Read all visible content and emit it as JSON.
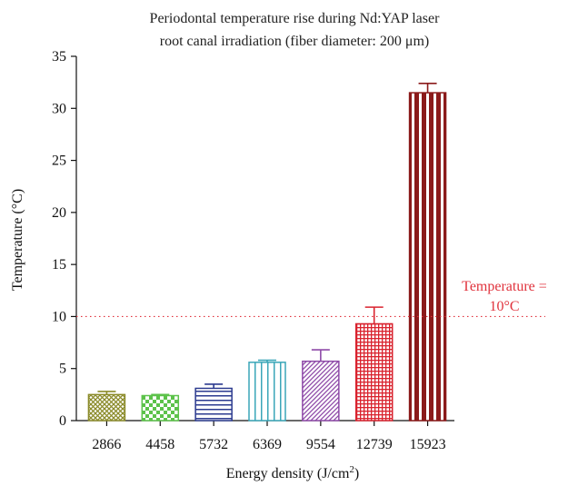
{
  "chart_data": {
    "type": "bar",
    "title_lines": [
      "Periodontal temperature rise during Nd:YAP laser",
      "root canal irradiation (fiber diameter: 200 μm)"
    ],
    "xlabel": "Energy density (J/cm",
    "xlabel_superscript": "2",
    "xlabel_suffix": ")",
    "ylabel": "Temperature (°C)",
    "ylim": [
      0,
      35
    ],
    "yticks": [
      "0",
      "5",
      "10",
      "15",
      "20",
      "25",
      "30",
      "35"
    ],
    "ytick_values": [
      0,
      5,
      10,
      15,
      20,
      25,
      30,
      35
    ],
    "categories": [
      "2866",
      "4458",
      "5732",
      "6369",
      "9554",
      "12739",
      "15923"
    ],
    "values": [
      2.5,
      2.4,
      3.1,
      5.6,
      5.7,
      9.3,
      31.5
    ],
    "error_upper": [
      0.3,
      0.1,
      0.4,
      0.2,
      1.1,
      1.6,
      0.9
    ],
    "bar_styles": [
      {
        "color": "#8b8b2a",
        "pattern": "crosshatch"
      },
      {
        "color": "#5cc24a",
        "pattern": "checker"
      },
      {
        "color": "#2b3a8f",
        "pattern": "horizontal"
      },
      {
        "color": "#3aa6b8",
        "pattern": "vertical"
      },
      {
        "color": "#8e4aa8",
        "pattern": "diagonal"
      },
      {
        "color": "#d9232e",
        "pattern": "grid"
      },
      {
        "color": "#8b1a1a",
        "pattern": "thick-vertical"
      }
    ],
    "reference_line": {
      "value": 10,
      "label_line1": "Temperature =",
      "label_line2": "10°C",
      "color": "#e0323c",
      "style": "dotted"
    },
    "grid": false,
    "legend": "none"
  }
}
